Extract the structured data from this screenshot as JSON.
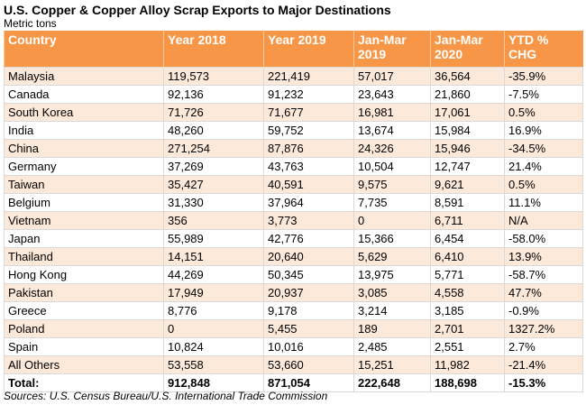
{
  "header": {
    "title": "U.S. Copper & Copper Alloy Scrap Exports to Major Destinations",
    "subtitle": "Metric tons"
  },
  "table": {
    "columns": [
      "Country",
      "Year 2018",
      "Year 2019",
      "Jan-Mar 2019",
      "Jan-Mar 2020",
      "YTD % CHG"
    ],
    "rows": [
      [
        "Malaysia",
        "119,573",
        "221,419",
        "57,017",
        "36,564",
        "-35.9%"
      ],
      [
        "Canada",
        "92,136",
        "91,232",
        "23,643",
        "21,860",
        "-7.5%"
      ],
      [
        "South Korea",
        "71,726",
        "71,677",
        "16,981",
        "17,061",
        "0.5%"
      ],
      [
        "India",
        "48,260",
        "59,752",
        "13,674",
        "15,984",
        "16.9%"
      ],
      [
        "China",
        "271,254",
        "87,876",
        "24,326",
        "15,946",
        "-34.5%"
      ],
      [
        "Germany",
        "37,269",
        "43,763",
        "10,504",
        "12,747",
        "21.4%"
      ],
      [
        "Taiwan",
        "35,427",
        "40,591",
        "9,575",
        "9,621",
        "0.5%"
      ],
      [
        "Belgium",
        "31,330",
        "37,964",
        "7,735",
        "8,591",
        "11.1%"
      ],
      [
        "Vietnam",
        "356",
        "3,773",
        "0",
        "6,711",
        "N/A"
      ],
      [
        "Japan",
        "55,989",
        "42,776",
        "15,366",
        "6,454",
        "-58.0%"
      ],
      [
        "Thailand",
        "14,151",
        "20,640",
        "5,629",
        "6,410",
        "13.9%"
      ],
      [
        "Hong Kong",
        "44,269",
        "50,345",
        "13,975",
        "5,771",
        "-58.7%"
      ],
      [
        "Pakistan",
        "17,949",
        "20,937",
        "3,085",
        "4,558",
        "47.7%"
      ],
      [
        "Greece",
        "8,776",
        "9,178",
        "3,214",
        "3,185",
        "-0.9%"
      ],
      [
        "Poland",
        "0",
        "5,455",
        "189",
        "2,701",
        "1327.2%"
      ],
      [
        "Spain",
        "10,824",
        "10,016",
        "2,485",
        "2,551",
        "2.7%"
      ],
      [
        "All Others",
        "53,558",
        "53,660",
        "15,251",
        "11,982",
        "-21.4%"
      ]
    ],
    "total": [
      "Total:",
      "912,848",
      "871,054",
      "222,648",
      "188,698",
      "-15.3%"
    ]
  },
  "footer": {
    "source": "Sources: U.S. Census Bureau/U.S. International Trade Commission"
  }
}
